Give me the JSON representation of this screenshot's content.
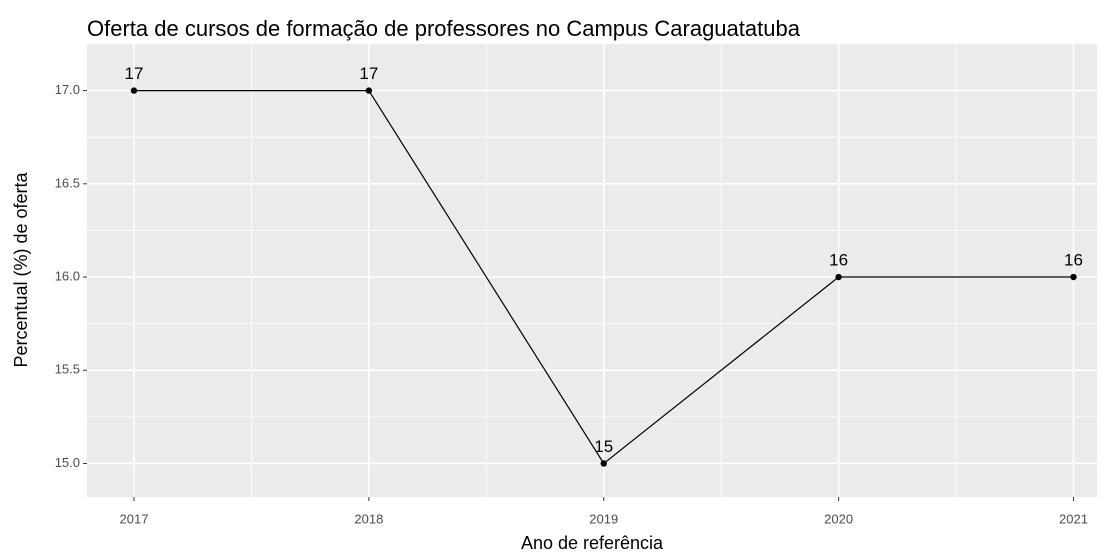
{
  "chart_data": {
    "type": "line",
    "title": "Oferta de cursos de formação de professores no Campus Caraguatatuba",
    "x_label": "Ano de referência",
    "y_label": "Percentual (%) de oferta",
    "x": [
      2017,
      2018,
      2019,
      2020,
      2021
    ],
    "series": [
      {
        "name": "Oferta",
        "color": "#000000",
        "values": [
          17,
          17,
          15,
          16,
          16
        ]
      }
    ],
    "xlim": [
      2016.8,
      2021.1
    ],
    "xticks": [
      2017,
      2018,
      2019,
      2020,
      2021
    ],
    "ylim": [
      14.82,
      17.25
    ],
    "yticks": [
      {
        "value": 15,
        "label": "15.0"
      },
      {
        "value": 15.5,
        "label": "15.5"
      },
      {
        "value": 16,
        "label": "16.0"
      },
      {
        "value": 16.5,
        "label": "16.5"
      },
      {
        "value": 17,
        "label": "17.0"
      }
    ],
    "grid": true,
    "panel_color": "#ebebeb"
  }
}
